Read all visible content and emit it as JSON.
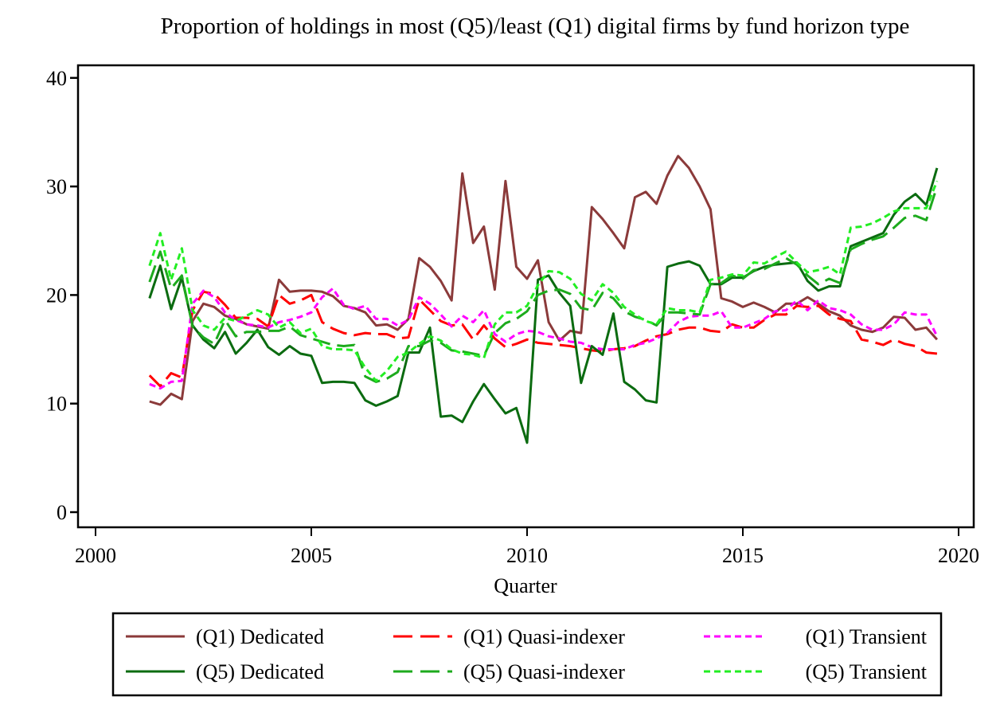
{
  "chart_data": {
    "type": "line",
    "title": "Proportion of holdings in most (Q5)/least (Q1) digital firms by fund horizon type",
    "xlabel": "Quarter",
    "ylabel": "",
    "xlim": [
      1999.6,
      2020.5
    ],
    "ylim": [
      -1.2,
      41
    ],
    "xticks": [
      2000,
      2005,
      2010,
      2015,
      2020
    ],
    "xtick_labels": [
      "2000",
      "2005",
      "2010",
      "2015",
      "2020"
    ],
    "yticks": [
      0,
      10,
      20,
      30,
      40
    ],
    "ytick_labels": [
      "0",
      "10",
      "20",
      "30",
      "40"
    ],
    "grid": false,
    "legend_position": "bottom",
    "x_start": 2001.25,
    "x_step": 0.25,
    "series": [
      {
        "name": "(Q1) Dedicated",
        "color": "#8B3A3A",
        "style": "solid",
        "values": [
          10.2,
          9.9,
          10.9,
          10.4,
          17.6,
          19.2,
          18.9,
          18.1,
          17.8,
          17.3,
          17.1,
          16.9,
          21.4,
          20.3,
          20.4,
          20.4,
          20.3,
          19.9,
          19.0,
          18.8,
          18.4,
          17.2,
          17.3,
          16.8,
          17.8,
          23.4,
          22.6,
          21.3,
          19.5,
          31.2,
          24.8,
          26.3,
          20.5,
          30.5,
          22.6,
          21.5,
          23.2,
          17.5,
          15.8,
          16.7,
          16.5,
          28.1,
          27.0,
          25.7,
          24.3,
          29.0,
          29.5,
          28.4,
          31.0,
          32.8,
          31.7,
          30.0,
          27.9,
          19.7,
          19.4,
          18.9,
          19.3,
          18.9,
          18.4,
          19.2,
          19.2,
          19.8,
          19.2,
          18.5,
          18.1,
          17.2,
          16.8,
          16.6,
          17.0,
          18.0,
          17.9,
          16.8,
          17.0,
          15.9
        ]
      },
      {
        "name": "(Q1) Quasi-indexer",
        "color": "#FF0000",
        "style": "dash",
        "values": [
          12.6,
          11.6,
          12.8,
          12.4,
          18.6,
          20.3,
          20.1,
          19.1,
          17.9,
          17.9,
          17.8,
          17.1,
          20.0,
          19.2,
          19.5,
          20.0,
          17.5,
          16.9,
          16.5,
          16.3,
          16.5,
          16.4,
          16.4,
          16.0,
          16.1,
          19.6,
          18.6,
          17.6,
          17.2,
          17.3,
          15.9,
          17.2,
          16.0,
          15.2,
          15.5,
          15.9,
          15.6,
          15.5,
          15.4,
          15.3,
          15.1,
          14.9,
          14.8,
          15.0,
          15.1,
          15.3,
          15.8,
          16.2,
          16.4,
          16.8,
          17.0,
          17.0,
          16.7,
          16.6,
          17.3,
          17.0,
          17.0,
          17.7,
          18.2,
          18.2,
          19.0,
          18.9,
          19.0,
          18.2,
          17.8,
          17.6,
          15.9,
          15.7,
          15.4,
          15.9,
          15.5,
          15.3,
          14.7,
          14.6
        ]
      },
      {
        "name": "(Q1) Transient",
        "color": "#FF00FF",
        "style": "dot",
        "values": [
          11.8,
          11.4,
          12.0,
          12.1,
          19.2,
          20.4,
          19.8,
          18.4,
          17.7,
          17.3,
          17.2,
          17.0,
          17.5,
          17.7,
          18.0,
          18.4,
          19.8,
          20.6,
          19.1,
          18.7,
          19.0,
          17.8,
          17.8,
          17.2,
          17.7,
          19.8,
          19.2,
          18.2,
          17.1,
          18.1,
          17.5,
          18.6,
          16.4,
          15.7,
          16.4,
          16.7,
          16.6,
          16.2,
          16.0,
          15.7,
          15.6,
          15.2,
          15.0,
          15.0,
          15.0,
          15.4,
          15.6,
          16.0,
          16.5,
          17.5,
          18.0,
          18.1,
          18.1,
          18.5,
          17.0,
          17.0,
          17.4,
          17.8,
          18.5,
          18.6,
          19.5,
          18.6,
          19.5,
          18.8,
          18.6,
          18.2,
          17.3,
          16.8,
          16.8,
          17.3,
          18.4,
          18.2,
          18.2,
          16.2
        ]
      },
      {
        "name": "(Q5) Dedicated",
        "color": "#0B6B10",
        "style": "solid",
        "values": [
          19.7,
          22.7,
          18.7,
          21.6,
          17.2,
          15.9,
          15.1,
          16.6,
          14.6,
          15.6,
          16.8,
          15.2,
          14.5,
          15.3,
          14.6,
          14.4,
          11.9,
          12.0,
          12.0,
          11.9,
          10.3,
          9.8,
          10.2,
          10.7,
          14.7,
          14.7,
          17.0,
          8.8,
          8.9,
          8.3,
          10.2,
          11.8,
          10.4,
          9.1,
          9.6,
          6.4,
          21.4,
          21.8,
          20.2,
          19.0,
          11.9,
          15.3,
          14.5,
          18.3,
          12.0,
          11.3,
          10.3,
          10.1,
          22.6,
          22.9,
          23.1,
          22.7,
          21.0,
          21.0,
          21.6,
          21.6,
          22.2,
          22.6,
          22.8,
          22.9,
          23.0,
          21.3,
          20.4,
          20.8,
          20.8,
          24.5,
          24.9,
          25.3,
          25.7,
          27.4,
          28.6,
          29.3,
          28.3,
          31.7
        ]
      },
      {
        "name": "(Q5) Quasi-indexer",
        "color": "#1DAA1D",
        "style": "dash",
        "values": [
          21.2,
          24.0,
          20.6,
          21.8,
          17.1,
          16.1,
          15.5,
          17.7,
          16.2,
          16.6,
          16.6,
          16.7,
          16.7,
          17.1,
          16.3,
          16.0,
          15.7,
          15.4,
          15.3,
          15.4,
          12.5,
          12.0,
          12.3,
          12.9,
          15.3,
          15.3,
          15.8,
          15.6,
          14.9,
          14.8,
          14.6,
          14.4,
          16.5,
          17.4,
          17.8,
          18.5,
          20.0,
          20.4,
          20.5,
          20.1,
          18.8,
          18.6,
          20.2,
          19.7,
          18.5,
          18.0,
          17.7,
          17.2,
          18.4,
          18.4,
          18.3,
          18.2,
          21.0,
          21.1,
          21.8,
          21.5,
          22.3,
          22.4,
          22.9,
          23.4,
          22.8,
          21.8,
          21.0,
          21.5,
          21.1,
          24.2,
          24.7,
          25.1,
          25.4,
          26.2,
          27.1,
          27.3,
          26.9,
          30.0
        ]
      },
      {
        "name": "(Q5) Transient",
        "color": "#22EE22",
        "style": "dot",
        "values": [
          22.7,
          25.7,
          21.4,
          24.3,
          18.6,
          17.2,
          16.8,
          17.9,
          17.6,
          18.1,
          18.6,
          18.2,
          17.0,
          17.5,
          16.5,
          16.9,
          15.3,
          15.0,
          15.0,
          14.9,
          13.3,
          12.1,
          13.0,
          14.3,
          14.7,
          15.5,
          16.2,
          15.8,
          15.0,
          14.6,
          14.5,
          14.2,
          17.3,
          18.4,
          18.4,
          19.0,
          20.9,
          22.2,
          22.1,
          21.5,
          20.1,
          19.5,
          21.0,
          20.2,
          18.9,
          18.2,
          17.6,
          17.3,
          18.8,
          18.6,
          18.6,
          18.4,
          21.4,
          21.6,
          21.9,
          21.8,
          23.0,
          22.9,
          23.5,
          24.0,
          23.0,
          22.1,
          22.3,
          22.6,
          21.9,
          26.2,
          26.3,
          26.6,
          27.1,
          27.7,
          28.0,
          28.0,
          28.0,
          30.5
        ]
      }
    ],
    "legend": {
      "rows": [
        [
          "(Q1) Dedicated",
          "(Q1) Quasi-indexer",
          "(Q1) Transient"
        ],
        [
          "(Q5) Dedicated",
          "(Q5) Quasi-indexer",
          "(Q5) Transient"
        ]
      ]
    }
  }
}
